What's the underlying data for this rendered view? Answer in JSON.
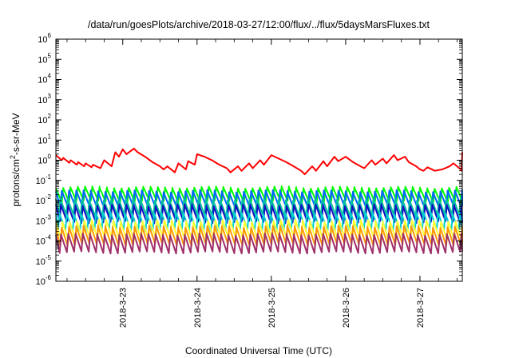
{
  "chart_data": {
    "type": "line",
    "title": "/data/run/goesPlots/archive/2018-03-27/12:00/flux/../flux/5daysMarsFluxes.txt",
    "xlabel": "Coordinated Universal Time (UTC)",
    "ylabel_parts": [
      "protons/cm",
      "2",
      "-s-sr-MeV"
    ],
    "y_scale": "log",
    "ylim_exponent": [
      -6,
      6
    ],
    "y_tick_labels": [
      {
        "base": "10",
        "exp": "-6"
      },
      {
        "base": "10",
        "exp": "-5"
      },
      {
        "base": "10",
        "exp": "-4"
      },
      {
        "base": "10",
        "exp": "-3"
      },
      {
        "base": "10",
        "exp": "-2"
      },
      {
        "base": "10",
        "exp": "-1"
      },
      {
        "base": "10",
        "exp": "0"
      },
      {
        "base": "10",
        "exp": "1"
      },
      {
        "base": "10",
        "exp": "2"
      },
      {
        "base": "10",
        "exp": "3"
      },
      {
        "base": "10",
        "exp": "4"
      },
      {
        "base": "10",
        "exp": "5"
      },
      {
        "base": "10",
        "exp": "6"
      }
    ],
    "x_tick_labels": [
      "2018-3-23",
      "2018-3-24",
      "2018-3-25",
      "2018-3-26",
      "2018-3-27"
    ],
    "xlim_days": [
      22.1,
      27.57
    ],
    "grid": false,
    "legend": "none",
    "series": [
      {
        "color": "#ff0000",
        "x": [
          22.1,
          22.18,
          22.2,
          22.28,
          22.3,
          22.38,
          22.4,
          22.48,
          22.5,
          22.58,
          22.6,
          22.7,
          22.75,
          22.85,
          22.9,
          22.95,
          23.0,
          23.05,
          23.15,
          23.2,
          23.3,
          23.4,
          23.5,
          23.55,
          23.6,
          23.7,
          23.75,
          23.85,
          23.88,
          23.97,
          24.0,
          24.1,
          24.2,
          24.3,
          24.4,
          24.45,
          24.55,
          24.6,
          24.7,
          24.75,
          24.85,
          24.9,
          25.0,
          25.1,
          25.2,
          25.3,
          25.4,
          25.45,
          25.55,
          25.6,
          25.7,
          25.75,
          25.85,
          25.9,
          26.0,
          26.1,
          26.2,
          26.25,
          26.35,
          26.4,
          26.5,
          26.55,
          26.65,
          26.7,
          26.8,
          26.85,
          26.95,
          27.0,
          27.05,
          27.1,
          27.2,
          27.3,
          27.4,
          27.45,
          27.5,
          27.55,
          27.56,
          27.57
        ],
        "y": [
          1.8,
          1.0,
          1.3,
          0.75,
          1.0,
          0.6,
          0.8,
          0.5,
          0.7,
          0.45,
          0.6,
          0.4,
          1.0,
          0.5,
          2.5,
          1.5,
          3.5,
          2.0,
          3.8,
          2.5,
          1.5,
          0.8,
          0.5,
          0.35,
          0.5,
          0.25,
          0.7,
          0.35,
          0.9,
          0.6,
          2.0,
          1.5,
          1.0,
          0.6,
          0.4,
          0.25,
          0.5,
          0.3,
          0.7,
          0.4,
          1.0,
          0.6,
          1.8,
          1.2,
          0.8,
          0.5,
          0.3,
          0.2,
          0.5,
          0.3,
          0.9,
          0.5,
          1.5,
          0.9,
          1.5,
          0.8,
          0.5,
          0.4,
          1.0,
          0.6,
          1.2,
          0.7,
          1.8,
          1.0,
          1.5,
          0.8,
          0.5,
          0.35,
          0.3,
          0.45,
          0.3,
          0.35,
          0.5,
          0.7,
          0.5,
          0.35,
          0.3,
          2.5
        ]
      },
      {
        "color": "#00ff00",
        "base": 0.02,
        "drop": 2.2,
        "period": 0.098,
        "offset": 0.0
      },
      {
        "color": "#0066ff",
        "base": 0.012,
        "drop": 2.4,
        "period": 0.098,
        "offset": 0.02
      },
      {
        "color": "#00c0a0",
        "base": 0.0045,
        "drop": 2.5,
        "period": 0.098,
        "offset": 0.04
      },
      {
        "color": "#1010c0",
        "base": 0.0022,
        "drop": 2.6,
        "period": 0.098,
        "offset": 0.03
      },
      {
        "color": "#00d0d0",
        "base": 0.0009,
        "drop": 2.6,
        "period": 0.098,
        "offset": 0.05
      },
      {
        "color": "#ffff33",
        "base": 0.00035,
        "drop": 2.8,
        "period": 0.098,
        "offset": 0.01
      },
      {
        "color": "#ff9900",
        "base": 0.00018,
        "drop": 2.8,
        "period": 0.098,
        "offset": 0.02
      },
      {
        "color": "#a0306a",
        "base": 7.5e-05,
        "drop": 2.8,
        "period": 0.098,
        "offset": 0.03
      }
    ]
  }
}
